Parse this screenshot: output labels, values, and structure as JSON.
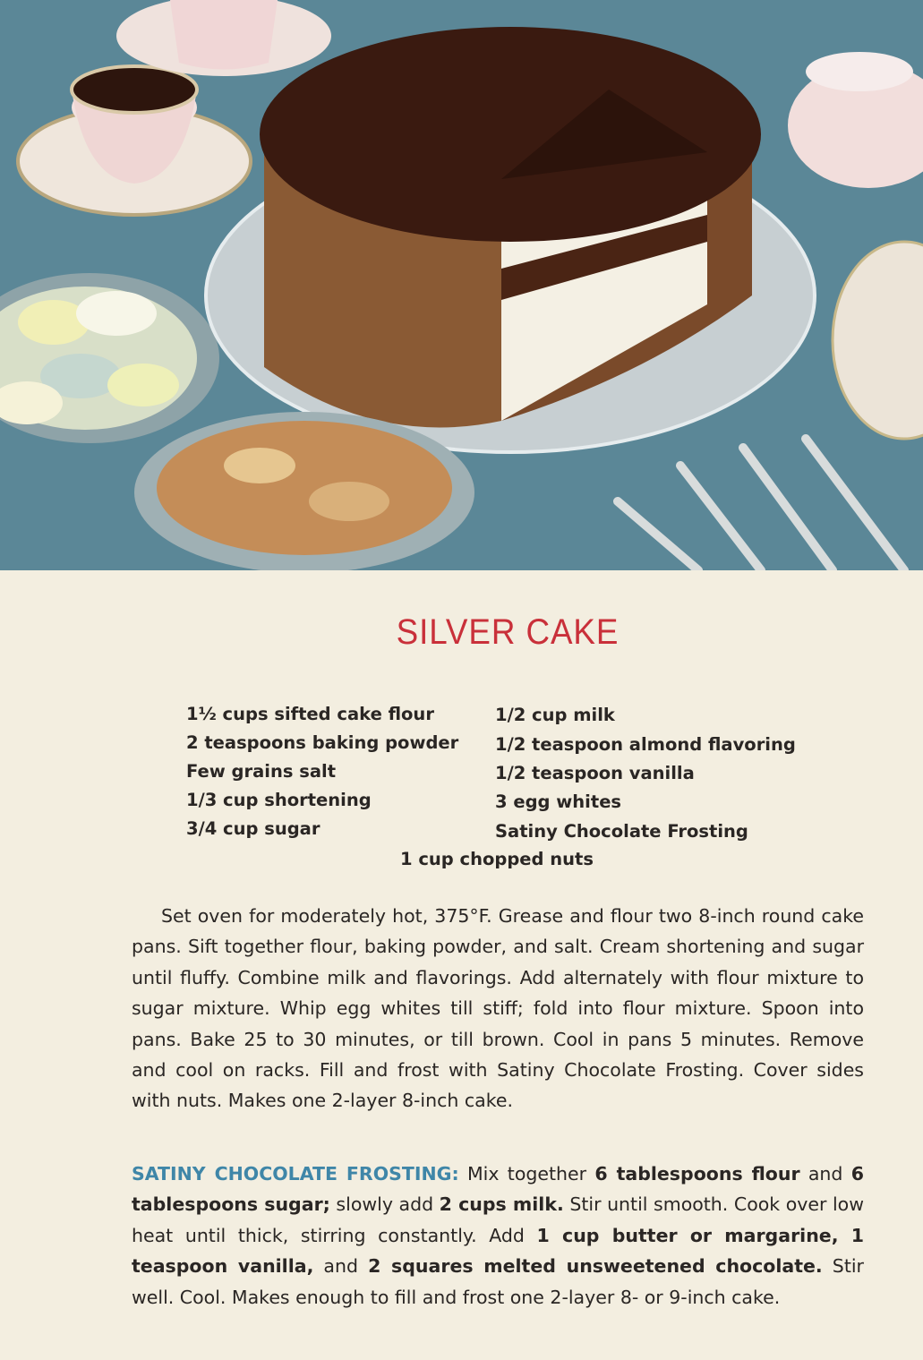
{
  "title": "SILVER CAKE",
  "ingredients": {
    "left": [
      "1½ cups sifted cake flour",
      "2 teaspoons baking powder",
      "Few grains salt",
      "1/3 cup shortening",
      "3/4 cup sugar"
    ],
    "right": [
      "1/2 cup milk",
      "1/2 teaspoon almond flavoring",
      "1/2 teaspoon vanilla",
      "3 egg whites",
      "Satiny Chocolate Frosting"
    ],
    "center": "1 cup chopped nuts"
  },
  "method": "Set oven for moderately hot, 375°F. Grease and flour two 8-inch round cake pans. Sift together flour, baking powder, and salt. Cream shortening and sugar until fluffy. Combine milk and flavorings. Add alternately with flour mixture to sugar mixture. Whip egg whites till stiff; fold into flour mixture. Spoon into pans. Bake 25 to 30 minutes, or till brown. Cool in pans 5 minutes. Remove and cool on racks. Fill and frost with Satiny Chocolate Frosting. Cover sides with nuts. Makes one 2-layer 8-inch cake.",
  "frosting": {
    "heading": "SATINY CHOCOLATE FROSTING:",
    "segments": [
      {
        "text": " Mix together ",
        "bold": false
      },
      {
        "text": "6 tablespoons flour",
        "bold": true
      },
      {
        "text": " and ",
        "bold": false
      },
      {
        "text": "6 tablespoons sugar;",
        "bold": true
      },
      {
        "text": " slowly add ",
        "bold": false
      },
      {
        "text": "2 cups milk.",
        "bold": true
      },
      {
        "text": " Stir until smooth. Cook over low heat until thick, stirring constantly. Add ",
        "bold": false
      },
      {
        "text": "1 cup butter or margarine, 1 teaspoon vanilla,",
        "bold": true
      },
      {
        "text": " and ",
        "bold": false
      },
      {
        "text": "2 squares melted unsweet­ened chocolate.",
        "bold": true
      },
      {
        "text": " Stir well. Cool. Makes enough to fill and frost one 2-layer 8- or 9-inch cake.",
        "bold": false
      }
    ]
  },
  "colors": {
    "title": "#c9303a",
    "heading": "#3f86a8",
    "paper": "#f3eee0",
    "tablecloth": "#5b8797"
  }
}
